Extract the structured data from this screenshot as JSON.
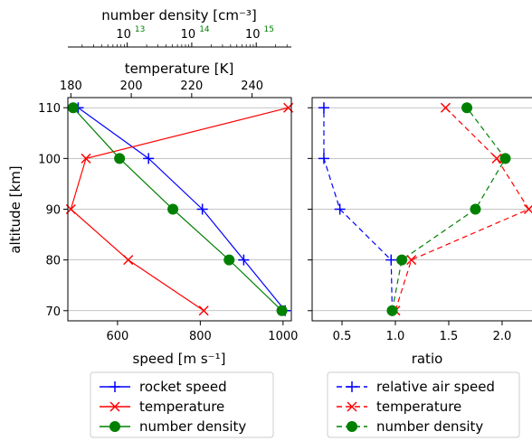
{
  "chart_data": [
    {
      "type": "line",
      "panel": "left",
      "ylabel": "altitude [km]",
      "ylim": [
        68,
        112
      ],
      "yticks": [
        70,
        80,
        90,
        100,
        110
      ],
      "ytick_labels": [
        "70",
        "80",
        "90",
        "100",
        "110"
      ],
      "grid": "horizontal",
      "x_axes": [
        {
          "name": "speed",
          "label": "speed [m s⁻¹]",
          "position": "bottom",
          "color": "#0000ff",
          "lim": [
            480,
            1020
          ],
          "ticks": [
            600,
            800,
            1000
          ],
          "tick_labels": [
            "600",
            "800",
            "1000"
          ]
        },
        {
          "name": "temperature",
          "label": "temperature [K]",
          "position": "top",
          "color": "#ff0000",
          "lim": [
            179,
            253
          ],
          "ticks": [
            180,
            200,
            220,
            240
          ],
          "tick_labels": [
            "180",
            "200",
            "220",
            "240"
          ]
        },
        {
          "name": "number density",
          "label": "number density [cm⁻³]",
          "position": "top-offset",
          "color": "#008000",
          "scale": "log",
          "lim": [
            1200000000000.0,
            3500000000000000.0
          ],
          "ticks": [
            10000000000000.0,
            100000000000000.0,
            1000000000000000.0
          ],
          "tick_labels": [
            "10",
            "10",
            "10"
          ],
          "tick_exponents": [
            "13",
            "14",
            "15"
          ]
        }
      ],
      "series": [
        {
          "name": "rocket speed",
          "axis": "speed",
          "color": "#0000ff",
          "marker": "plus",
          "linestyle": "solid",
          "x": [
            1005,
            905,
            805,
            675,
            505
          ],
          "y": [
            70,
            80,
            90,
            100,
            110
          ]
        },
        {
          "name": "temperature",
          "axis": "temperature",
          "color": "#ff0000",
          "marker": "x",
          "linestyle": "solid",
          "x": [
            224,
            199,
            180,
            185,
            252
          ],
          "y": [
            70,
            80,
            90,
            100,
            110
          ]
        },
        {
          "name": "number density",
          "axis": "number density",
          "color": "#008000",
          "marker": "circle",
          "linestyle": "solid",
          "x": [
            2500000000000000.0,
            380000000000000.0,
            51000000000000.0,
            7600000000000.0,
            1450000000000.0
          ],
          "y": [
            70,
            80,
            90,
            100,
            110
          ]
        }
      ],
      "legend": {
        "placement": "below",
        "entries": [
          "rocket speed",
          "temperature",
          "number density"
        ]
      }
    },
    {
      "type": "line",
      "panel": "right",
      "xlabel": "ratio",
      "xlim": [
        0.22,
        2.28
      ],
      "xticks": [
        0.5,
        1.0,
        1.5,
        2.0
      ],
      "xtick_labels": [
        "0.5",
        "1.0",
        "1.5",
        "2.0"
      ],
      "ylim": [
        68,
        112
      ],
      "grid": "horizontal",
      "series": [
        {
          "name": "relative air speed",
          "color": "#0000ff",
          "marker": "plus",
          "linestyle": "dashed",
          "x": [
            0.97,
            0.96,
            0.48,
            0.33,
            0.33
          ],
          "y": [
            70,
            80,
            90,
            100,
            110
          ]
        },
        {
          "name": "temperature",
          "color": "#ff0000",
          "marker": "x",
          "linestyle": "dashed",
          "x": [
            1.0,
            1.15,
            2.25,
            1.95,
            1.47
          ],
          "y": [
            70,
            80,
            90,
            100,
            110
          ]
        },
        {
          "name": "number density",
          "color": "#008000",
          "marker": "circle",
          "linestyle": "dashed",
          "x": [
            0.97,
            1.06,
            1.75,
            2.03,
            1.67
          ],
          "y": [
            70,
            80,
            90,
            100,
            110
          ]
        }
      ],
      "legend": {
        "placement": "below",
        "entries": [
          "relative air speed",
          "temperature",
          "number density"
        ]
      }
    }
  ]
}
